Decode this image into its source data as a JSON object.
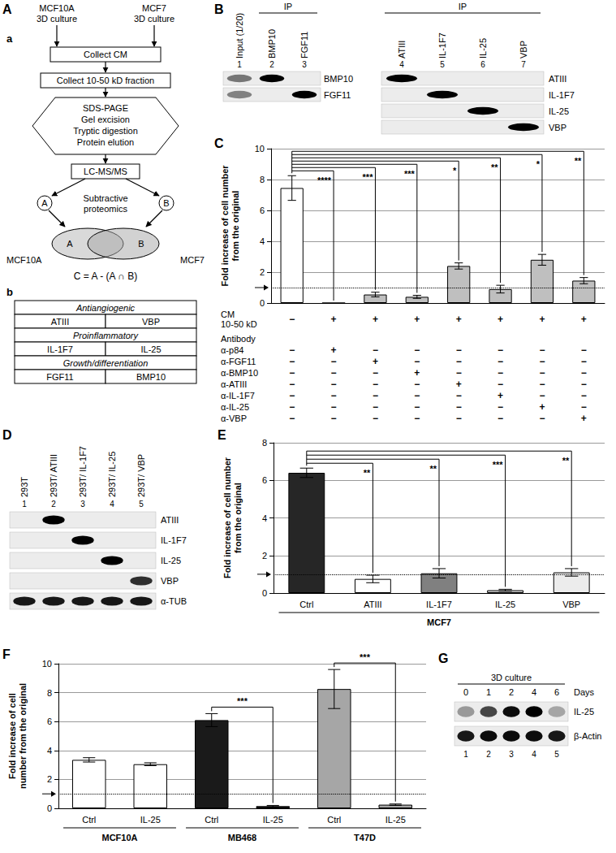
{
  "panel_labels": [
    "A",
    "B",
    "C",
    "D",
    "E",
    "F",
    "G"
  ],
  "panel_a": {
    "sublabels": [
      "a",
      "b"
    ],
    "sources": [
      [
        "MCF10A",
        "3D culture"
      ],
      [
        "MCF7",
        "3D culture"
      ]
    ],
    "steps": [
      "Collect CM",
      "Collect 10-50 kD fraction"
    ],
    "processing": [
      "SDS-PAGE",
      "Gel excision",
      "Tryptic digestion",
      "Protein elution"
    ],
    "analysis": "LC-MS/MS",
    "method": [
      "Subtractive",
      "proteomics"
    ],
    "sets": [
      "A",
      "B"
    ],
    "venn_names": [
      "MCF10A",
      "MCF7"
    ],
    "formula": "C = A - (A ∩ B)",
    "table": [
      {
        "header": "Antiangiogenic",
        "items": [
          "ATIII",
          "VBP"
        ]
      },
      {
        "header": "Proinflammatory",
        "items": [
          "IL-1F7",
          "IL-25"
        ]
      },
      {
        "header": "Growth/differentiation",
        "items": [
          "FGF11",
          "BMP10"
        ]
      }
    ]
  },
  "blots": [
    {
      "panel": "B",
      "header": "IP",
      "lanes": [
        {
          "label": "Input (1/20)",
          "number": 1,
          "under_header": false
        },
        {
          "label": "BMP10",
          "number": 2,
          "under_header": true
        },
        {
          "label": "FGF11",
          "number": 3,
          "under_header": true
        }
      ],
      "rows": [
        "BMP10",
        "FGF11"
      ],
      "bands": [
        [
          0.5,
          1,
          0
        ],
        [
          0.45,
          0,
          1
        ]
      ]
    },
    {
      "panel": "B",
      "header": "IP",
      "lanes": [
        {
          "label": "ATIII",
          "number": 4,
          "under_header": true
        },
        {
          "label": "IL-1F7",
          "number": 5,
          "under_header": true
        },
        {
          "label": "IL-25",
          "number": 6,
          "under_header": true
        },
        {
          "label": "VBP",
          "number": 7,
          "under_header": true
        }
      ],
      "rows": [
        "ATIII",
        "IL-1F7",
        "IL-25",
        "VBP"
      ],
      "bands": [
        [
          1,
          0,
          0,
          0
        ],
        [
          0,
          1,
          0,
          0
        ],
        [
          0,
          0,
          1,
          0
        ],
        [
          0,
          0,
          0,
          1
        ]
      ]
    },
    {
      "panel": "D",
      "lanes": [
        {
          "label": "293T",
          "number": 1,
          "under_header": false
        },
        {
          "label": "293T/ ATIII",
          "number": 2,
          "under_header": false
        },
        {
          "label": "293T/ IL-1F7",
          "number": 3,
          "under_header": false
        },
        {
          "label": "293T/ IL-25",
          "number": 4,
          "under_header": false
        },
        {
          "label": "293T/ VBP",
          "number": 5,
          "under_header": false
        }
      ],
      "rows": [
        "ATIII",
        "IL-1F7",
        "IL-25",
        "VBP",
        "α-TUB"
      ],
      "bands": [
        [
          0,
          1,
          0,
          0,
          0
        ],
        [
          0,
          0,
          1,
          0,
          0
        ],
        [
          0,
          0,
          0,
          1,
          0
        ],
        [
          0,
          0,
          0,
          0,
          0.8
        ],
        [
          0.9,
          0.9,
          0.9,
          0.9,
          0.9
        ]
      ]
    },
    {
      "panel": "G",
      "header": "3D culture",
      "lane_axis": "Days",
      "lanes": [
        {
          "label": "0",
          "number": 1,
          "under_header": true
        },
        {
          "label": "1",
          "number": 2,
          "under_header": true
        },
        {
          "label": "2",
          "number": 3,
          "under_header": true
        },
        {
          "label": "4",
          "number": 4,
          "under_header": true
        },
        {
          "label": "6",
          "number": 5,
          "under_header": true
        }
      ],
      "rows": [
        "IL-25",
        "β-Actin"
      ],
      "bands": [
        [
          0.35,
          0.7,
          0.95,
          1,
          0.3
        ],
        [
          0.9,
          0.95,
          0.95,
          0.95,
          0.9
        ]
      ]
    }
  ],
  "chart_data": [
    {
      "type": "bar",
      "panel": "C",
      "ylabel": "Fold increase of cell number from the original",
      "categories": [
        null,
        null,
        null,
        null,
        null,
        null,
        null,
        null
      ],
      "values": [
        7.45,
        0,
        0.55,
        0.4,
        2.4,
        0.9,
        2.8,
        1.45
      ],
      "errors": [
        0.8,
        null,
        0.15,
        0.1,
        0.2,
        0.25,
        0.35,
        0.2
      ],
      "colors": [
        "#ffffff",
        "#ffffff",
        "#bfbfbf",
        "#bfbfbf",
        "#bfbfbf",
        "#bfbfbf",
        "#bfbfbf",
        "#bfbfbf"
      ],
      "ylim": [
        0,
        10
      ],
      "yticks": [
        0,
        2,
        4,
        6,
        8,
        10
      ],
      "grid": true,
      "reference_line": 1,
      "significance": [
        {
          "from": 0,
          "to": 1,
          "label": "****"
        },
        {
          "from": 0,
          "to": 2,
          "label": "***"
        },
        {
          "from": 0,
          "to": 3,
          "label": "***"
        },
        {
          "from": 0,
          "to": 4,
          "label": "*"
        },
        {
          "from": 0,
          "to": 5,
          "label": "**"
        },
        {
          "from": 0,
          "to": 6,
          "label": "*"
        },
        {
          "from": 0,
          "to": 7,
          "label": "**"
        }
      ],
      "conditions": [
        {
          "label": [
            "CM",
            "10-50 kD"
          ],
          "marks": [
            "−",
            "+",
            "+",
            "+",
            "+",
            "+",
            "+",
            "+"
          ]
        }
      ],
      "antibody_header": "Antibody",
      "antibodies": [
        {
          "label": "α-p84",
          "marks": [
            "−",
            "+",
            "−",
            "−",
            "−",
            "−",
            "−",
            "−"
          ]
        },
        {
          "label": "α-FGF11",
          "marks": [
            "−",
            "−",
            "+",
            "−",
            "−",
            "−",
            "−",
            "−"
          ]
        },
        {
          "label": "α-BMP10",
          "marks": [
            "−",
            "−",
            "−",
            "+",
            "−",
            "−",
            "−",
            "−"
          ]
        },
        {
          "label": "α-ATIII",
          "marks": [
            "−",
            "−",
            "−",
            "−",
            "+",
            "−",
            "−",
            "−"
          ]
        },
        {
          "label": "α-IL-1F7",
          "marks": [
            "−",
            "−",
            "−",
            "−",
            "−",
            "+",
            "−",
            "−"
          ]
        },
        {
          "label": "α-IL-25",
          "marks": [
            "−",
            "−",
            "−",
            "−",
            "−",
            "−",
            "+",
            "−"
          ]
        },
        {
          "label": "α-VBP",
          "marks": [
            "−",
            "−",
            "−",
            "−",
            "−",
            "−",
            "−",
            "+"
          ]
        }
      ]
    },
    {
      "type": "bar",
      "panel": "E",
      "ylabel": "Fold increase of cell number from the original",
      "categories": [
        "Ctrl",
        "ATIII",
        "IL-1F7",
        "IL-25",
        "VBP"
      ],
      "groups": [
        "MCF7",
        "MCF7",
        "MCF7",
        "MCF7",
        "MCF7"
      ],
      "values": [
        6.4,
        0.75,
        1.05,
        0.15,
        1.1
      ],
      "errors": [
        0.25,
        0.2,
        0.25,
        0.05,
        0.2
      ],
      "colors": [
        "#262626",
        "#ffffff",
        "#808080",
        "#d0d0d0",
        "#ececec"
      ],
      "ylim": [
        0,
        8
      ],
      "yticks": [
        0,
        2,
        4,
        6,
        8
      ],
      "grid": true,
      "reference_line": 1,
      "significance": [
        {
          "from": 0,
          "to": 1,
          "label": "**"
        },
        {
          "from": 0,
          "to": 2,
          "label": "**"
        },
        {
          "from": 0,
          "to": 3,
          "label": "***"
        },
        {
          "from": 0,
          "to": 4,
          "label": "**"
        }
      ]
    },
    {
      "type": "bar",
      "panel": "F",
      "ylabel": "Fold increase of cell number from the original",
      "categories": [
        "Ctrl",
        "IL-25",
        "Ctrl",
        "IL-25",
        "Ctrl",
        "IL-25"
      ],
      "groups": [
        "MCF10A",
        "MCF10A",
        "MB468",
        "MB468",
        "T47D",
        "T47D"
      ],
      "values": [
        3.35,
        3.05,
        6.1,
        0.15,
        8.25,
        0.25
      ],
      "errors": [
        0.15,
        0.1,
        0.45,
        0.05,
        1.35,
        0.05
      ],
      "colors": [
        "#ffffff",
        "#ffffff",
        "#1a1a1a",
        "#1a1a1a",
        "#a6a6a6",
        "#a6a6a6"
      ],
      "ylim": [
        0,
        10
      ],
      "yticks": [
        0,
        2,
        4,
        6,
        8,
        10
      ],
      "grid": true,
      "reference_line": 1,
      "significance": [
        {
          "from": 2,
          "to": 3,
          "label": "***"
        },
        {
          "from": 4,
          "to": 5,
          "label": "***"
        }
      ]
    }
  ]
}
